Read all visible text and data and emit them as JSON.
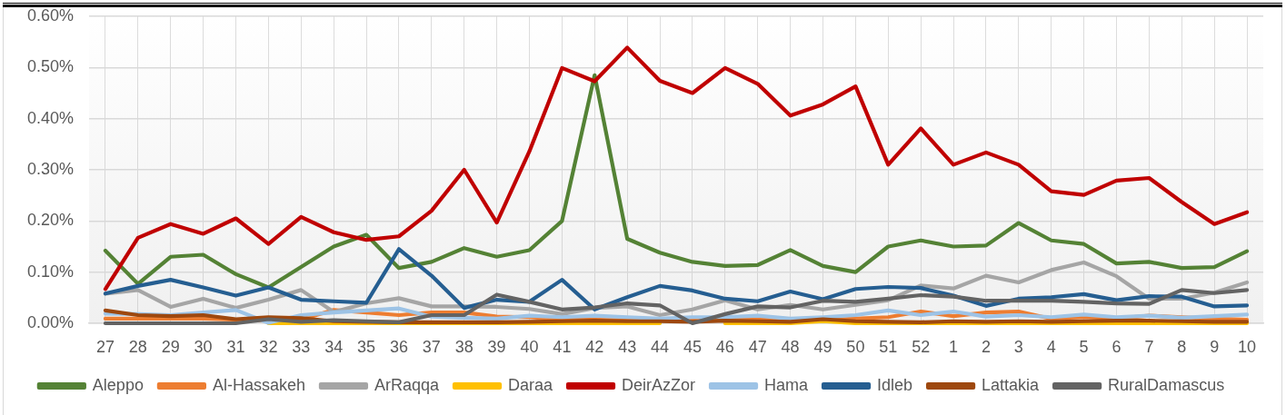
{
  "chart_data": {
    "type": "line",
    "categories": [
      "27",
      "28",
      "29",
      "30",
      "31",
      "32",
      "33",
      "34",
      "35",
      "36",
      "37",
      "38",
      "39",
      "40",
      "41",
      "42",
      "43",
      "44",
      "45",
      "46",
      "47",
      "48",
      "49",
      "50",
      "51",
      "52",
      "1",
      "2",
      "3",
      "4",
      "5",
      "6",
      "7",
      "8",
      "9",
      "10"
    ],
    "series": [
      {
        "name": "Aleppo",
        "color": "#548235",
        "values": [
          0.142,
          0.077,
          0.13,
          0.134,
          0.096,
          0.07,
          0.11,
          0.15,
          0.173,
          0.108,
          0.12,
          0.147,
          0.13,
          0.143,
          0.2,
          0.485,
          0.165,
          0.138,
          0.12,
          0.112,
          0.114,
          0.143,
          0.112,
          0.1,
          0.15,
          0.162,
          0.15,
          0.152,
          0.196,
          0.162,
          0.155,
          0.117,
          0.12,
          0.108,
          0.11,
          0.141
        ]
      },
      {
        "name": "Al-Hassakeh",
        "color": "#ed7d31",
        "values": [
          0.009,
          0.009,
          0.009,
          0.009,
          0.007,
          0.006,
          0.007,
          0.026,
          0.021,
          0.016,
          0.021,
          0.021,
          0.013,
          0.012,
          0.007,
          0.007,
          0.006,
          0.006,
          0.007,
          0.01,
          0.008,
          0.006,
          0.007,
          0.009,
          0.012,
          0.023,
          0.014,
          0.021,
          0.023,
          0.009,
          0.012,
          0.009,
          0.015,
          0.012,
          0.009,
          0.007
        ]
      },
      {
        "name": "ArRaqqa",
        "color": "#a5a5a5",
        "values": [
          0.058,
          0.065,
          0.032,
          0.048,
          0.03,
          0.046,
          0.065,
          0.022,
          0.039,
          0.049,
          0.033,
          0.033,
          0.032,
          0.028,
          0.018,
          0.03,
          0.033,
          0.016,
          0.027,
          0.045,
          0.027,
          0.036,
          0.027,
          0.036,
          0.045,
          0.074,
          0.068,
          0.093,
          0.08,
          0.104,
          0.119,
          0.092,
          0.048,
          0.048,
          0.06,
          0.08
        ]
      },
      {
        "name": "Daraa",
        "color": "#ffc000",
        "values": [
          null,
          null,
          null,
          null,
          null,
          0,
          0,
          0,
          0,
          0,
          0,
          0,
          0,
          0,
          0,
          0,
          0,
          0,
          null,
          0,
          0,
          0,
          0.004,
          0,
          0,
          0,
          0,
          0,
          0,
          0,
          0,
          0,
          0,
          0,
          0,
          0
        ]
      },
      {
        "name": "DeirAzZor",
        "color": "#c00000",
        "values": [
          0.067,
          0.167,
          0.194,
          0.175,
          0.205,
          0.155,
          0.208,
          0.178,
          0.163,
          0.17,
          0.22,
          0.3,
          0.197,
          0.336,
          0.499,
          0.473,
          0.539,
          0.474,
          0.45,
          0.499,
          0.468,
          0.406,
          0.428,
          0.463,
          0.31,
          0.381,
          0.31,
          0.334,
          0.31,
          0.258,
          0.251,
          0.279,
          0.284,
          0.237,
          0.194,
          0.217
        ]
      },
      {
        "name": "Hama",
        "color": "#9dc3e6",
        "values": [
          0.019,
          0.018,
          0.016,
          0.021,
          0.026,
          0.001,
          0.016,
          0.021,
          0.025,
          0.029,
          0.013,
          0.011,
          0.009,
          0.015,
          0.012,
          0.015,
          0.012,
          0.009,
          0.012,
          0.012,
          0.015,
          0.009,
          0.012,
          0.016,
          0.025,
          0.016,
          0.023,
          0.013,
          0.016,
          0.012,
          0.017,
          0.012,
          0.015,
          0.011,
          0.014,
          0.017
        ]
      },
      {
        "name": "Idleb",
        "color": "#255e91",
        "values": [
          0.058,
          0.073,
          0.085,
          0.07,
          0.054,
          0.07,
          0.046,
          0.043,
          0.04,
          0.145,
          0.093,
          0.03,
          0.046,
          0.042,
          0.085,
          0.027,
          0.051,
          0.073,
          0.064,
          0.048,
          0.043,
          0.062,
          0.047,
          0.067,
          0.071,
          0.069,
          0.054,
          0.034,
          0.048,
          0.051,
          0.057,
          0.045,
          0.053,
          0.052,
          0.033,
          0.035
        ]
      },
      {
        "name": "Lattakia",
        "color": "#9e480e",
        "values": [
          0.025,
          0.016,
          0.014,
          0.016,
          0.008,
          0.012,
          0.01,
          0.004,
          0.003,
          0.002,
          0.002,
          0.002,
          0.002,
          0.003,
          0.004,
          0.005,
          0.004,
          0.004,
          0.003,
          0.005,
          0.004,
          0.003,
          0.008,
          0.004,
          0.003,
          0.002,
          0.004,
          0.003,
          0.004,
          0.003,
          0.004,
          0.005,
          0.005,
          0.004,
          0.003,
          0.003
        ]
      },
      {
        "name": "RuralDamascus",
        "color": "#636363",
        "values": [
          0,
          0,
          0,
          0,
          0,
          0.008,
          0.003,
          0.006,
          0.004,
          0.002,
          0.016,
          0.016,
          0.056,
          0.042,
          0.027,
          0.031,
          0.039,
          0.035,
          0,
          0.018,
          0.033,
          0.031,
          0.044,
          0.042,
          0.048,
          0.055,
          0.052,
          0.044,
          0.044,
          0.044,
          0.042,
          0.039,
          0.038,
          0.065,
          0.059,
          0.065
        ]
      }
    ],
    "ylim": [
      0,
      0.6
    ],
    "yticks": [
      {
        "value": 0,
        "label": "0.00%"
      },
      {
        "value": 0.1,
        "label": "0.10%"
      },
      {
        "value": 0.2,
        "label": "0.20%"
      },
      {
        "value": 0.3,
        "label": "0.30%"
      },
      {
        "value": 0.4,
        "label": "0.40%"
      },
      {
        "value": 0.5,
        "label": "0.50%"
      },
      {
        "value": 0.6,
        "label": "0.60%"
      }
    ],
    "grid": true,
    "legend": "bottom"
  }
}
